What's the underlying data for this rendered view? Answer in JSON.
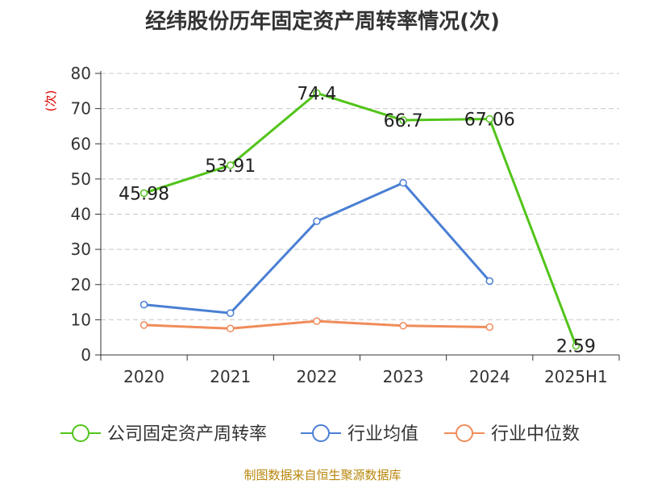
{
  "title": "经纬股份历年固定资产周转率情况(次)",
  "source": "制图数据来自恒生聚源数据库",
  "chart_data": {
    "type": "line",
    "title": "经纬股份历年固定资产周转率情况(次)",
    "categories": [
      "2020",
      "2021",
      "2022",
      "2023",
      "2024",
      "2025H1"
    ],
    "yaxis_unit": "(次)",
    "ylim": [
      0,
      80
    ],
    "yticks": [
      0,
      10,
      20,
      30,
      40,
      50,
      60,
      70,
      80
    ],
    "grid": true,
    "legend_position": "bottom",
    "series": [
      {
        "name": "公司固定资产周转率",
        "color": "#52c41a",
        "values": [
          45.98,
          53.91,
          74.4,
          66.7,
          67.06,
          2.59
        ],
        "labels": [
          "45.98",
          "53.91",
          "74.4",
          "66.7",
          "67.06",
          "2.59"
        ]
      },
      {
        "name": "行业均值",
        "color": "#4a7fd4",
        "values": [
          14.3,
          11.9,
          38.0,
          48.9,
          21.0,
          null
        ]
      },
      {
        "name": "行业中位数",
        "color": "#f08c5a",
        "values": [
          8.5,
          7.5,
          9.6,
          8.3,
          7.9,
          null
        ]
      }
    ]
  }
}
